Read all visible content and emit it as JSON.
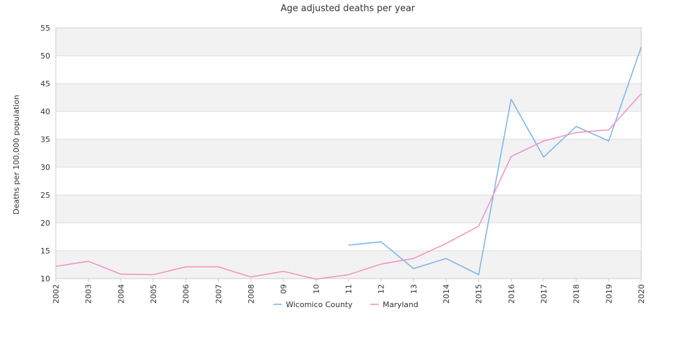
{
  "chart_data": {
    "type": "line",
    "title": "Age adjusted deaths per year",
    "xlabel": "",
    "ylabel": "Deaths per 100,000 population",
    "categories": [
      "2002",
      "2003",
      "2004",
      "2005",
      "2006",
      "2007",
      "2008",
      "09",
      "10",
      "11",
      "12",
      "13",
      "2014",
      "2015",
      "2016",
      "2017",
      "2018",
      "2019",
      "2020"
    ],
    "ylim": [
      10,
      55
    ],
    "yticks": [
      10,
      15,
      20,
      25,
      30,
      35,
      40,
      45,
      50,
      55
    ],
    "grid": "horizontal alternating bands",
    "legend_position": "bottom-center",
    "series": [
      {
        "name": "Wicomico County",
        "color": "#7eb6ea",
        "values": [
          null,
          null,
          null,
          null,
          null,
          null,
          null,
          null,
          null,
          16.0,
          16.6,
          11.8,
          13.6,
          10.7,
          42.2,
          31.8,
          37.3,
          34.7,
          51.6
        ]
      },
      {
        "name": "Maryland",
        "color": "#f095c5",
        "values": [
          12.2,
          13.1,
          10.8,
          10.7,
          12.1,
          12.1,
          10.3,
          11.3,
          9.9,
          10.7,
          12.6,
          13.6,
          16.3,
          19.4,
          31.9,
          34.7,
          36.2,
          36.7,
          43.2
        ]
      }
    ]
  },
  "colors": {
    "band": "#f2f2f2",
    "gridline": "#dddddd",
    "axis": "#cccccc",
    "text": "#333333"
  }
}
